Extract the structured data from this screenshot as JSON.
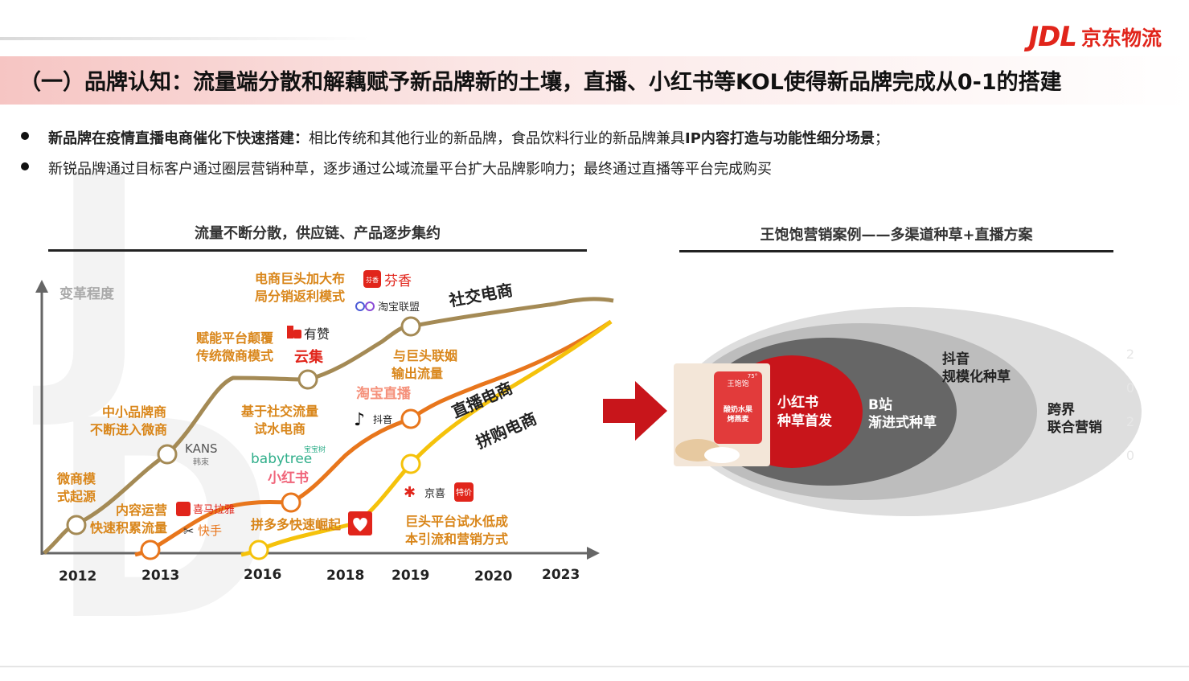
{
  "logo": {
    "mark": "JDL",
    "name": "京东物流"
  },
  "title": "（一）品牌认知：流量端分散和解藕赋予新品牌新的土壤，直播、小红书等KOL使得新品牌完成从0-1的搭建",
  "bullets": [
    {
      "lead": "新品牌在疫情直播电商催化下快速搭建：",
      "text1": "相比传统和其他行业的新品牌，食品饮料行业的新品牌兼具",
      "strong": "IP内容打造与功能性细分场景",
      "text2": "；"
    },
    {
      "lead": "",
      "text1": "新锐品牌通过目标客户通过圈层营销种草，逐步通过公域流量平台扩大品牌影响力；最终通过直播等平台完成购买",
      "strong": "",
      "text2": ""
    }
  ],
  "left_title": "流量不断分散，供应链、产品逐步集约",
  "right_title": "王饱饱营销案例——多渠道种草+直播方案",
  "evolution": {
    "y_axis_label": "变革程度",
    "years": [
      "2012",
      "2013",
      "2016",
      "2018",
      "2019",
      "2020",
      "2023"
    ],
    "curve_labels": {
      "social": "社交电商",
      "live": "直播电商",
      "group": "拼购电商"
    },
    "stages": [
      {
        "text": [
          "微商模",
          "式起源"
        ]
      },
      {
        "text": [
          "中小品牌商",
          "不断进入微商"
        ]
      },
      {
        "text": [
          "赋能平台颠覆",
          "传统微商模式"
        ]
      },
      {
        "text": [
          "电商巨头加大布",
          "局分销返利模式"
        ]
      },
      {
        "text": [
          "内容运营",
          "快速积累流量"
        ]
      },
      {
        "text": [
          "基于社交流量",
          "试水电商"
        ]
      },
      {
        "text": [
          "与巨头联姻",
          "输出流量"
        ]
      },
      {
        "text": [
          "拼多多快速崛起"
        ]
      },
      {
        "text": [
          "巨头平台试水低成",
          "本引流和营销方式"
        ]
      }
    ],
    "brands": {
      "kans": "KANS",
      "kans_sub": "韩束",
      "youzan": "有赞",
      "yunji": "云集",
      "fenxiang": "芬香",
      "fenxiang_badge": "芬香",
      "taobao_union": "淘宝联盟",
      "babytree": "babytree",
      "babytree_badge": "宝宝树",
      "xiaohongshu": "小红书",
      "taobao_live": "淘宝直播",
      "douyin": "抖音",
      "ximalaya": "喜马拉雅",
      "kuaishou": "快手",
      "jingxi": "京喜",
      "tejia": "特价"
    }
  },
  "case": {
    "product_brand": "王饱饱",
    "product_label": [
      "酸奶水果",
      "烤燕麦"
    ],
    "product_badge": "75°",
    "rings": [
      {
        "lines": [
          "小红书",
          "种草首发"
        ],
        "color": "#c8151b"
      },
      {
        "lines": [
          "B站",
          "渐进式种草"
        ],
        "color": "#666666"
      },
      {
        "lines": [
          "抖音",
          "规模化种草"
        ],
        "color": "#bdbdbd"
      },
      {
        "lines": [
          "跨界",
          "联合营销"
        ],
        "color": "#dedede"
      }
    ]
  },
  "colors": {
    "brand_red": "#e1251b",
    "social": "#a48a55",
    "live": "#e8761c",
    "group": "#f5c20b",
    "label_orange": "#d9861a"
  },
  "side_digits": [
    "2",
    "0",
    "2",
    "0"
  ]
}
